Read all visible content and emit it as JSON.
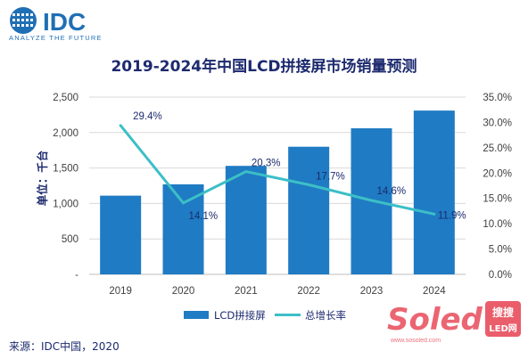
{
  "logo": {
    "brand": "IDC",
    "tagline": "ANALYZE THE FUTURE"
  },
  "watermark": {
    "brand": "Soled",
    "badge_line1": "搜搜",
    "badge_line2": "LED网",
    "url": "www.sosoled.com"
  },
  "source": "来源：IDC中国，2020",
  "colors": {
    "bar": "#1f7bc3",
    "line": "#3cbfc7",
    "title": "#1d2a6e"
  },
  "chart_data": {
    "type": "bar+line",
    "title": "2019-2024年中国LCD拼接屏市场销量预测",
    "ylabel": "单位：千台",
    "categories": [
      "2019",
      "2020",
      "2021",
      "2022",
      "2023",
      "2024"
    ],
    "ylim": [
      0,
      2500
    ],
    "yticks": [
      0,
      500,
      1000,
      1500,
      2000,
      2500
    ],
    "yticklabels": [
      "-",
      "500",
      "1,000",
      "1,500",
      "2,000",
      "2,500"
    ],
    "y2lim": [
      0,
      35
    ],
    "y2ticks": [
      0,
      5,
      10,
      15,
      20,
      25,
      30,
      35
    ],
    "y2ticklabels": [
      "0.0%",
      "5.0%",
      "10.0%",
      "15.0%",
      "20.0%",
      "25.0%",
      "30.0%",
      "35.0%"
    ],
    "series": [
      {
        "name": "LCD拼接屏",
        "type": "bar",
        "axis": "left",
        "values": [
          1110,
          1270,
          1530,
          1800,
          2060,
          2310
        ]
      },
      {
        "name": "总增长率",
        "type": "line",
        "axis": "right",
        "values": [
          29.4,
          14.1,
          20.3,
          17.7,
          14.6,
          11.9
        ],
        "labels": [
          "29.4%",
          "14.1%",
          "20.3%",
          "17.7%",
          "14.6%",
          "11.9%"
        ]
      }
    ],
    "legend": "bottom"
  }
}
